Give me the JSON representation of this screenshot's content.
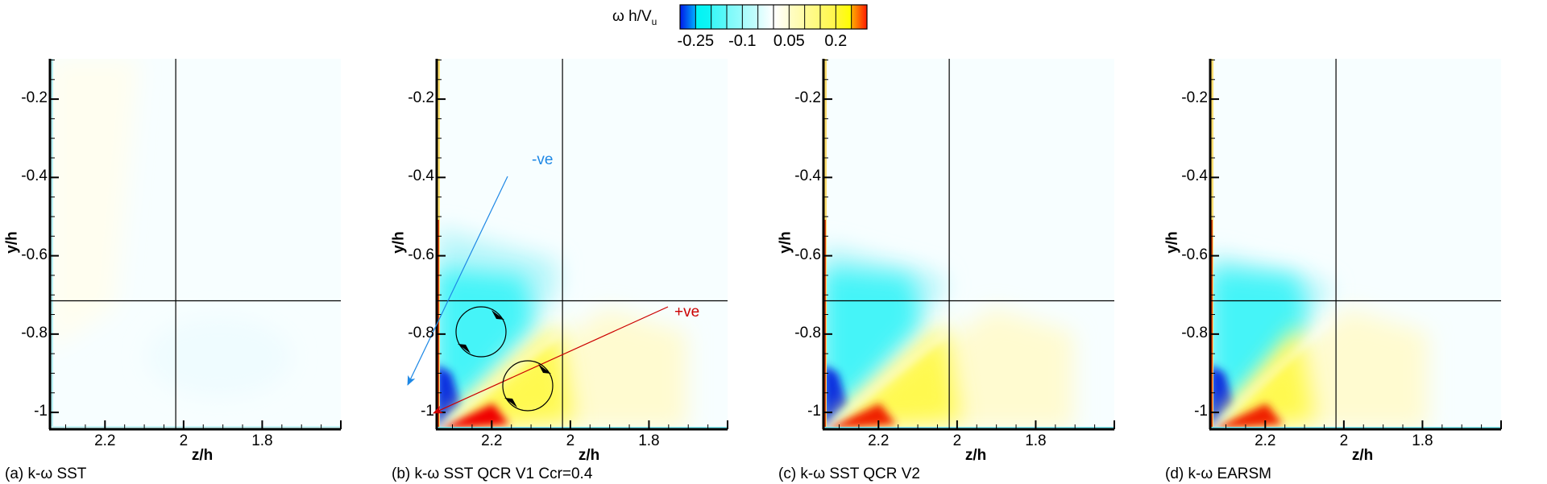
{
  "legend": {
    "title_main": "ω h/V",
    "title_sub": "u",
    "min": -0.3,
    "max": 0.3,
    "levels": [
      -0.3,
      -0.25,
      -0.2,
      -0.15,
      -0.1,
      -0.05,
      0,
      0.05,
      0.1,
      0.15,
      0.2,
      0.25,
      0.3
    ],
    "tick_labels": [
      {
        "value": -0.25,
        "text": "-0.25"
      },
      {
        "value": -0.1,
        "text": "-0.1"
      },
      {
        "value": 0.05,
        "text": "0.05"
      },
      {
        "value": 0.2,
        "text": "0.2"
      }
    ],
    "colors": {
      "deep_negative": "#0000e0",
      "negative": "#00f0f0",
      "zero": "#ffffff",
      "positive": "#ffff00",
      "deep_positive": "#e00000"
    }
  },
  "chart_data": [
    {
      "type": "heatmap",
      "panel": "a",
      "title": "(a) k-ω SST",
      "xlabel": "z/h",
      "ylabel": "y/h",
      "xlim": [
        2.34,
        1.6
      ],
      "ylim": [
        -1.043,
        -0.097
      ],
      "xticks": [
        2.2,
        2.0,
        1.8
      ],
      "xtick_labels": [
        "2.2",
        "2",
        "1.8"
      ],
      "yticks": [
        -0.2,
        -0.4,
        -0.6,
        -0.8,
        -1.0
      ],
      "ytick_labels": [
        "-0.2",
        "-0.4",
        "-0.6",
        "-0.8",
        "-1"
      ],
      "reference_lines": {
        "x": 2.02,
        "y": -0.715
      },
      "field_description": "near-uniform weak vorticity (|ωh/Vu| < 0.05)",
      "features": []
    },
    {
      "type": "heatmap",
      "panel": "b",
      "title": "(b)  k-ω SST QCR V1 Ccr=0.4",
      "xlabel": "z/h",
      "ylabel": "y/h",
      "xlim": [
        2.34,
        1.6
      ],
      "ylim": [
        -1.043,
        -0.097
      ],
      "xticks": [
        2.2,
        2.0,
        1.8
      ],
      "xtick_labels": [
        "2.2",
        "2",
        "1.8"
      ],
      "yticks": [
        -0.2,
        -0.4,
        -0.6,
        -0.8,
        -1.0
      ],
      "ytick_labels": [
        "-0.2",
        "-0.4",
        "-0.6",
        "-0.8",
        "-1"
      ],
      "reference_lines": {
        "x": 2.02,
        "y": -0.715
      },
      "field_description": "negative (cyan/blue) vortex above corner bisector, positive (yellow/red) vortex below",
      "features": [
        "negative-vortex",
        "positive-vortex"
      ],
      "annotations": [
        {
          "text": "-ve",
          "color": "#1e88e5",
          "meaning": "negative vortex, clockwise circulation arrow"
        },
        {
          "text": "+ve",
          "color": "#cc0000",
          "meaning": "positive vortex, circulation arrow"
        }
      ]
    },
    {
      "type": "heatmap",
      "panel": "c",
      "title": "(c)  k-ω SST QCR V2",
      "xlabel": "z/h",
      "ylabel": "y/h",
      "xlim": [
        2.34,
        1.6
      ],
      "ylim": [
        -1.043,
        -0.097
      ],
      "xticks": [
        2.2,
        2.0,
        1.8
      ],
      "xtick_labels": [
        "2.2",
        "2",
        "1.8"
      ],
      "yticks": [
        -0.2,
        -0.4,
        -0.6,
        -0.8,
        -1.0
      ],
      "ytick_labels": [
        "-0.2",
        "-0.4",
        "-0.6",
        "-0.8",
        "-1"
      ],
      "reference_lines": {
        "x": 2.02,
        "y": -0.715
      },
      "field_description": "negative vortex above bisector, positive vortex below, slightly weaker than (b)",
      "features": [
        "negative-vortex",
        "positive-vortex"
      ]
    },
    {
      "type": "heatmap",
      "panel": "d",
      "title": "(d)  k-ω EARSM",
      "xlabel": "z/h",
      "ylabel": "y/h",
      "xlim": [
        2.34,
        1.6
      ],
      "ylim": [
        -1.043,
        -0.097
      ],
      "xticks": [
        2.2,
        2.0,
        1.8
      ],
      "xtick_labels": [
        "2.2",
        "2",
        "1.8"
      ],
      "yticks": [
        -0.2,
        -0.4,
        -0.6,
        -0.8,
        -1.0
      ],
      "ytick_labels": [
        "-0.2",
        "-0.4",
        "-0.6",
        "-0.8",
        "-1"
      ],
      "reference_lines": {
        "x": 2.02,
        "y": -0.715
      },
      "field_description": "negative vortex above, positive vortex below, compact near corner",
      "features": [
        "negative-vortex",
        "positive-vortex"
      ]
    }
  ]
}
